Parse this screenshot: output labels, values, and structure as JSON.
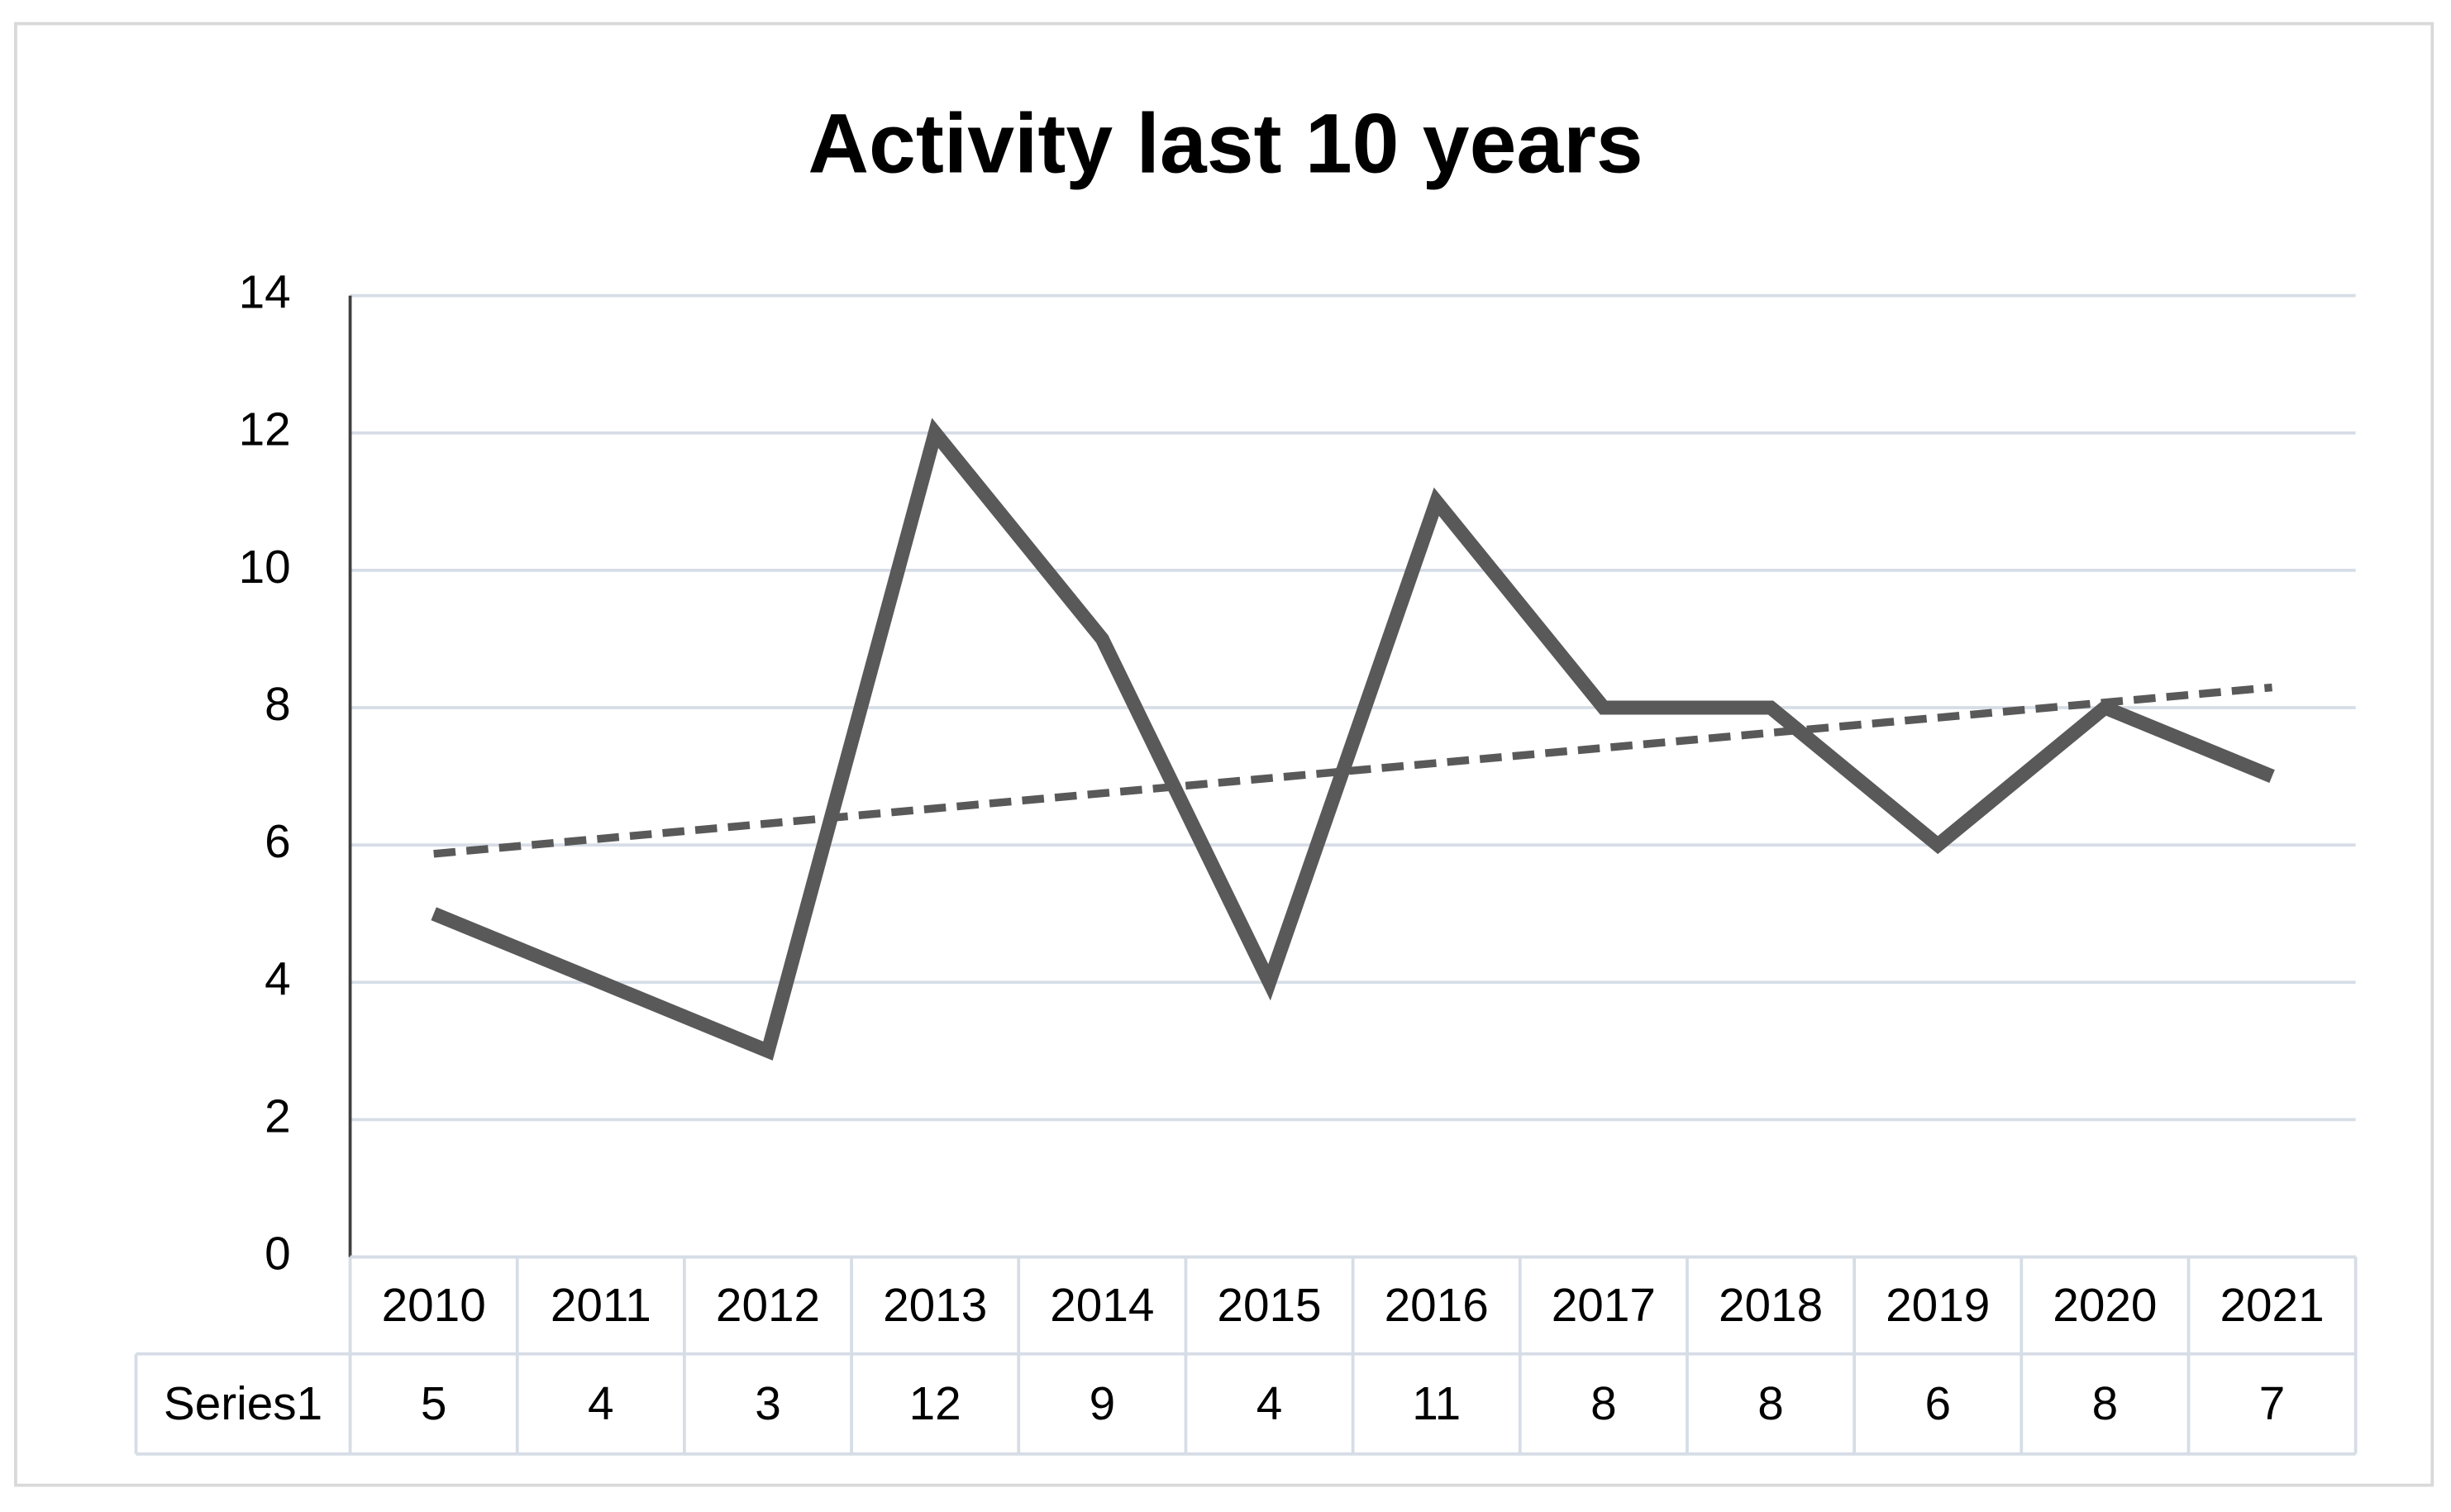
{
  "chart_data": {
    "type": "line",
    "title": "Activity last 10 years",
    "categories": [
      "2010",
      "2011",
      "2012",
      "2013",
      "2014",
      "2015",
      "2016",
      "2017",
      "2018",
      "2019",
      "2020",
      "2021"
    ],
    "series": [
      {
        "name": "Series1",
        "color": "#595959",
        "values": [
          5,
          4,
          3,
          12,
          9,
          4,
          11,
          8,
          8,
          6,
          8,
          7
        ]
      }
    ],
    "ylim": [
      0,
      14
    ],
    "yticks": [
      0,
      2,
      4,
      6,
      8,
      10,
      12,
      14
    ],
    "grid": true,
    "trendline": "linear",
    "data_table": true
  }
}
